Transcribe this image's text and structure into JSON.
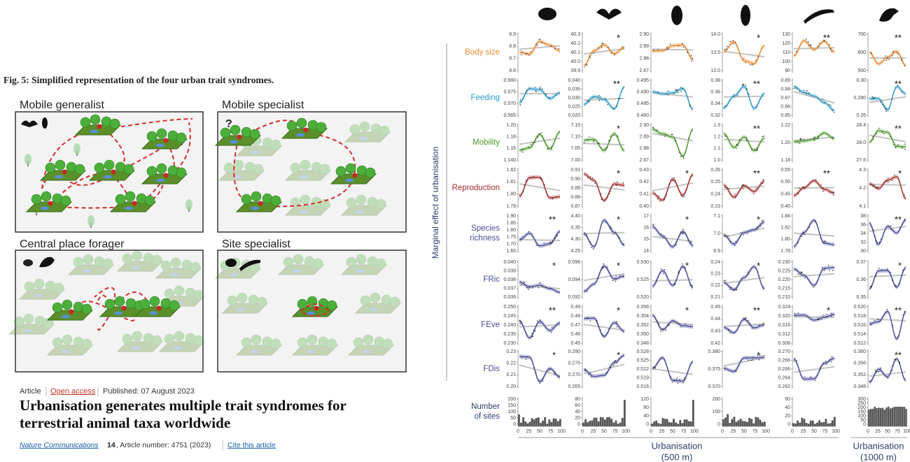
{
  "figure_caption": "Fig. 5: Simplified representation of the four urban trait syndromes.",
  "syndromes": [
    "Mobile generalist",
    "Mobile specialist",
    "Central place forager",
    "Site specialist"
  ],
  "mobile_specialist_mark": "?",
  "article": {
    "type": "Article",
    "access": "Open access",
    "published": "Published: 07 August 2023",
    "title_lines": [
      "Urbanisation generates multiple trait syndromes for",
      "terrestrial animal taxa worldwide"
    ],
    "journal": "Nature Communications",
    "volume": "14",
    "article_number": ", Article number: 4751 (2023)",
    "cite": "Cite this article"
  },
  "trait_panel": {
    "y_axis_label": "Marginal effect of urbanisation",
    "rows": [
      {
        "label": [
          "Body size"
        ],
        "color": "#e8892f",
        "panels": [
          {
            "yticks": [
              "8.9",
              "8.8",
              "8.7",
              "8.6"
            ]
          },
          {
            "yticks": [
              "40.3",
              "40.2",
              "40.1",
              "40.0",
              "39.9"
            ],
            "sig": "*"
          },
          {
            "yticks": [
              "2.90",
              "2.89",
              "2.88",
              "2.87"
            ]
          },
          {
            "yticks": [
              "14.0",
              "13.5",
              "13.0"
            ],
            "sig": "*"
          },
          {
            "yticks": [
              "130",
              "120",
              "110",
              "100",
              "90"
            ],
            "sig": "**"
          },
          {
            "yticks": [
              "700",
              "600",
              "500"
            ],
            "sig": "**"
          }
        ]
      },
      {
        "label": [
          "Feeding"
        ],
        "color": "#2a9ac9",
        "panels": [
          {
            "yticks": [
              "0.980",
              "0.975",
              "0.970",
              "0.965"
            ]
          },
          {
            "yticks": [
              "0.040",
              "0.035",
              "0.030",
              "0.025",
              "0.020"
            ],
            "sig": "**"
          },
          {
            "yticks": [
              "0.495",
              "0.490",
              "0.485",
              "0.480"
            ]
          },
          {
            "yticks": [
              "0.38",
              "0.36",
              "0.34",
              "0.32"
            ],
            "sig": "**"
          },
          {
            "yticks": [
              "0.89",
              "0.88",
              "0.87",
              "0.86",
              "0.85"
            ]
          },
          {
            "yticks": [
              "0.30",
              "0.280",
              "0.26"
            ],
            "sig": "**"
          }
        ]
      },
      {
        "label": [
          "Mobility"
        ],
        "color": "#4c9a2a",
        "panels": [
          {
            "yticks": [
              "1.20",
              "1.18",
              "1.16",
              "1.140"
            ]
          },
          {
            "yticks": [
              "7.15",
              "7.10",
              "7.05",
              "7.00"
            ],
            "sig": "*"
          },
          {
            "yticks": [
              "2.90",
              "2.89",
              "2.88",
              "2.87"
            ]
          },
          {
            "yticks": [
              "1.3",
              "1.2",
              "1.1",
              "1.0"
            ],
            "sig": "**"
          },
          {
            "yticks": [
              "1.22",
              "1.20",
              "1.18"
            ]
          },
          {
            "yticks": [
              "28.4",
              "28.0",
              "27.6"
            ],
            "sig": "**"
          }
        ]
      },
      {
        "label": [
          "Reproduction"
        ],
        "color": "#a52a2a",
        "panels": [
          {
            "yticks": [
              "1.82",
              "1.81",
              "1.80",
              "1.79"
            ]
          },
          {
            "yticks": [
              "0.91",
              "0.90",
              "0.89",
              "0.88",
              "0.87"
            ],
            "sig": "*"
          },
          {
            "yticks": [
              "0.43",
              "0.42",
              "0.41",
              "0.40"
            ],
            "sig": "*"
          },
          {
            "yticks": [
              "0.26",
              "0.25",
              "0.24",
              "0.23"
            ],
            "sig": "**"
          },
          {
            "yticks": [
              "0.55",
              "0.50",
              "0.45",
              "0.40"
            ],
            "sig": "**"
          },
          {
            "yticks": [
              "4.3",
              "4.2",
              "4.1"
            ],
            "sig": "*"
          }
        ]
      },
      {
        "label": [
          "Species",
          "richness"
        ],
        "color": "#4a4a9a",
        "panels": [
          {
            "yticks": [
              "1.90",
              "1.85",
              "1.80",
              "1.75",
              "1.70",
              "1.65"
            ],
            "sig": "**"
          },
          {
            "yticks": [
              "4.40",
              "4.35",
              "4.30",
              "4.25"
            ],
            "sig": "*"
          },
          {
            "yticks": [
              "17",
              "16",
              "15",
              "14"
            ],
            "sig": "*"
          },
          {
            "yticks": [
              "7.1",
              "7.0",
              "6.9"
            ],
            "sig": "*"
          },
          {
            "yticks": [
              "1.84",
              "1.82",
              "1.80",
              "1.78"
            ]
          },
          {
            "yticks": [
              "38",
              "36",
              "34",
              "32",
              "30"
            ],
            "sig": "**"
          }
        ]
      },
      {
        "label": [
          "FRic"
        ],
        "color": "#4a4a9a",
        "panels": [
          {
            "yticks": [
              "0.040",
              "0.039",
              "0.038",
              "0.037",
              "0.036"
            ],
            "sig": "*"
          },
          {
            "yticks": [
              "0.096",
              "0.094",
              "0.092"
            ],
            "sig": "*"
          },
          {
            "yticks": [
              "0.530",
              "0.525",
              "0.520"
            ],
            "sig": "*"
          },
          {
            "yticks": [
              "0.24",
              "0.23",
              "0.22",
              "0.21"
            ],
            "sig": "*"
          },
          {
            "yticks": [
              "0.230",
              "0.225",
              "0.220",
              "0.215",
              "0.210"
            ]
          },
          {
            "yticks": [
              "0.37",
              "0.36",
              "0.35"
            ],
            "sig": "*"
          }
        ]
      },
      {
        "label": [
          "FEve"
        ],
        "color": "#4a4a9a",
        "panels": [
          {
            "yticks": [
              "0.250",
              "0.245",
              "0.240",
              "0.235",
              "0.230"
            ],
            "sig": "**"
          },
          {
            "yticks": [
              "0.49",
              "0.48",
              "0.47",
              "0.46",
              "0.45"
            ],
            "sig": "*"
          },
          {
            "yticks": [
              "0.356",
              "0.354",
              "0.352",
              "0.350",
              "0.348"
            ],
            "sig": "*"
          },
          {
            "yticks": [
              "0.45",
              "0.44",
              "0.43",
              "0.42"
            ],
            "sig": "**"
          },
          {
            "yticks": [
              "0.324",
              "0.320",
              "0.316",
              "0.312",
              "0.308"
            ],
            "sig": "*"
          },
          {
            "yticks": [
              "0.520",
              "0.518",
              "0.516",
              "0.514",
              "0.512"
            ],
            "sig": "**"
          }
        ]
      },
      {
        "label": [
          "FDis"
        ],
        "color": "#4a4a9a",
        "panels": [
          {
            "yticks": [
              "0.23",
              "0.22",
              "0.21",
              "0.20"
            ],
            "sig": "*"
          },
          {
            "yticks": [
              "0.280",
              "0.275",
              "0.270",
              "0.265"
            ],
            "sig": "*"
          },
          {
            "yticks": [
              "0.528",
              "0.525",
              "0.522",
              "0.519",
              "0.516"
            ]
          },
          {
            "yticks": [
              "0.380",
              "0.375",
              "0.370"
            ],
            "sig": "*"
          },
          {
            "yticks": [
              "0.270",
              "0.268",
              "0.266",
              "0.264",
              "0.262"
            ]
          },
          {
            "yticks": [
              "0.360",
              "0.356",
              "0.352",
              "0.348"
            ],
            "sig": "**"
          }
        ]
      },
      {
        "label": [
          "Number",
          "of sites"
        ],
        "color": "#2c3e6b",
        "panels": [
          {
            "yticks": [
              "200",
              "150",
              "100",
              "50",
              "0"
            ]
          },
          {
            "yticks": [
              "80",
              "60",
              "40",
              "20",
              "0"
            ]
          },
          {
            "yticks": [
              "120",
              "80",
              "40",
              "0"
            ]
          },
          {
            "yticks": [
              "200",
              "100",
              "0"
            ]
          },
          {
            "yticks": [
              "60",
              "40",
              "20",
              "0"
            ]
          },
          {
            "yticks": [
              "300",
              "250",
              "200",
              "150",
              "100",
              "50",
              "0"
            ]
          }
        ]
      }
    ],
    "x_ticks": [
      "0",
      "25",
      "50",
      "75",
      "100"
    ],
    "x_label_500": [
      "Urbanisation",
      "(500 m)"
    ],
    "x_label_1000": [
      "Urbanisation",
      "(1000 m)"
    ]
  }
}
